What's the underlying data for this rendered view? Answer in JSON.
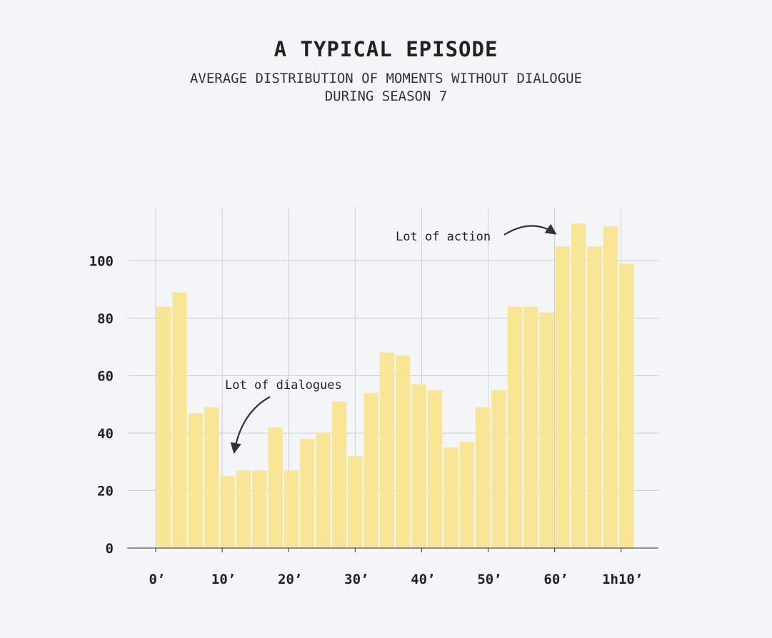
{
  "title": "A TYPICAL EPISODE",
  "subtitle_lines": [
    "AVERAGE DISTRIBUTION OF MOMENTS WITHOUT DIALOGUE",
    "DURING SEASON 7"
  ],
  "chart_data": {
    "type": "bar",
    "title": "A TYPICAL EPISODE",
    "subtitle": "AVERAGE DISTRIBUTION OF MOMENTS WITHOUT DIALOGUE DURING SEASON 7",
    "xlabel": "",
    "ylabel": "",
    "bin_width_minutes": 2.4,
    "x_start_minutes": 0,
    "values": [
      84,
      89,
      47,
      49,
      25,
      27,
      27,
      42,
      27,
      38,
      40,
      51,
      32,
      54,
      68,
      67,
      57,
      55,
      35,
      37,
      49,
      55,
      84,
      84,
      82,
      105,
      113,
      105,
      112,
      99
    ],
    "xlim": [
      0,
      72
    ],
    "ylim": [
      0,
      115
    ],
    "x_ticks": [
      0,
      10,
      20,
      30,
      40,
      50,
      60,
      70
    ],
    "x_tick_labels": [
      "0’",
      "10’",
      "20’",
      "30’",
      "40’",
      "50’",
      "60’",
      "1h10’"
    ],
    "y_ticks": [
      0,
      20,
      40,
      60,
      80,
      100
    ],
    "y_tick_labels": [
      "0",
      "20",
      "40",
      "60",
      "80",
      "100"
    ],
    "grid": true,
    "bar_color": "#f8e595",
    "annotations": [
      {
        "text": "Lot of dialogues",
        "x": 11.4,
        "y": 28
      },
      {
        "text": "Lot of action",
        "x": 61.0,
        "y": 110
      }
    ]
  }
}
